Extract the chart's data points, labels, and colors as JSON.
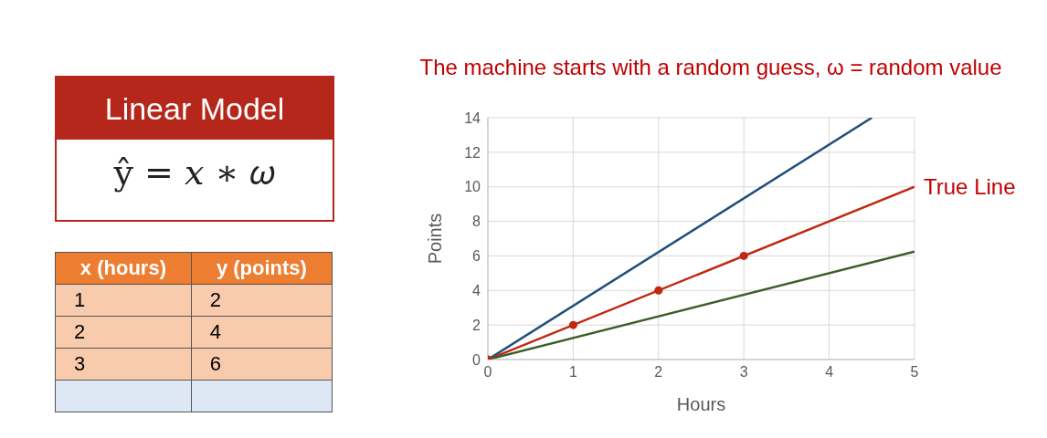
{
  "chart_data": [
    {
      "type": "other",
      "title": "Linear Model",
      "annotations": [
        "ŷ = 𝑥 ∗ 𝜔"
      ]
    },
    {
      "type": "other",
      "xlabel": "x (hours)",
      "ylabel": "y (points)",
      "categories": [
        "1",
        "2",
        "3",
        null
      ],
      "values": [
        2,
        4,
        6,
        null
      ],
      "data_labels": true
    },
    {
      "type": "line",
      "title": "The machine starts with a random guess, ω = random value",
      "xlabel": "Hours",
      "ylabel": "Points",
      "xlim": [
        0,
        5
      ],
      "xticks": [
        0,
        1,
        2,
        3,
        4,
        5
      ],
      "ylim": [
        0,
        14
      ],
      "yticks": [
        0,
        2,
        4,
        6,
        8,
        10,
        12,
        14
      ],
      "grid": true,
      "legend": false,
      "series": [
        {
          "color": "#1f4e79",
          "x": [
            0,
            4.5
          ],
          "values": [
            0,
            14
          ]
        },
        {
          "color": "#c0280f",
          "x": [
            0,
            5
          ],
          "values": [
            0,
            10
          ]
        },
        {
          "color": "#3a5f2a",
          "x": [
            0,
            5
          ],
          "values": [
            0,
            6.25
          ]
        },
        {
          "type": "scatter",
          "color": "#c0280f",
          "marker": "circle",
          "x": [
            0,
            1,
            2,
            3
          ],
          "values": [
            0,
            2,
            4,
            6
          ]
        }
      ],
      "annotations": [
        {
          "text": "True Line",
          "x": 5,
          "y": 10
        }
      ]
    }
  ]
}
